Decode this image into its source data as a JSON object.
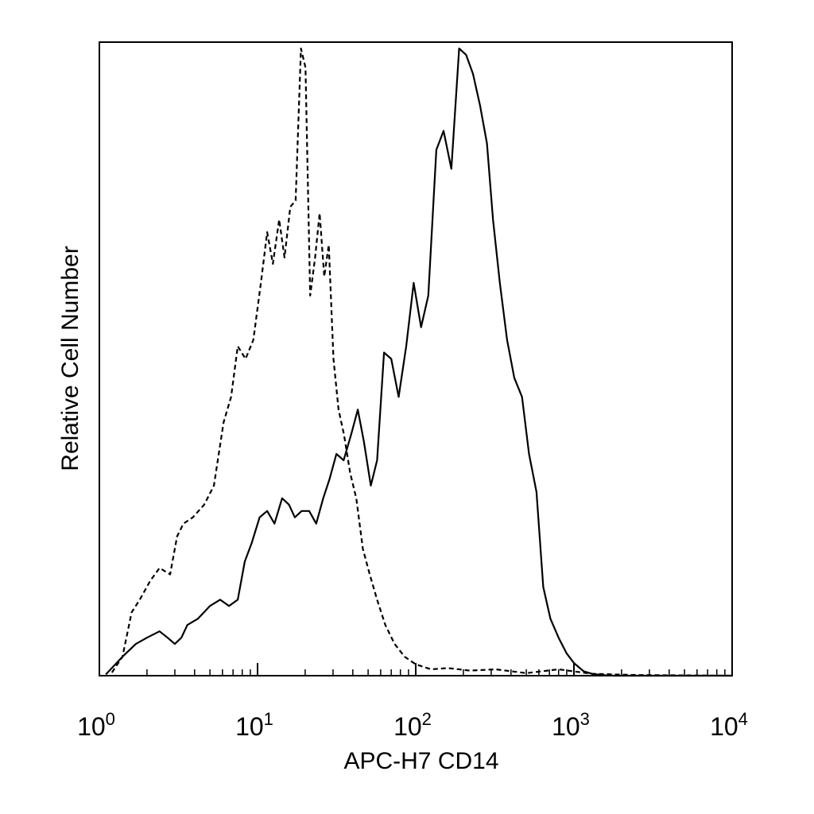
{
  "chart_data": {
    "type": "line",
    "title": "",
    "xlabel": "APC-H7  CD14",
    "ylabel": "Relative Cell Number",
    "x_scale": "log",
    "xlim": [
      1,
      10000
    ],
    "ylim": [
      0,
      100
    ],
    "grid": false,
    "legend": "none",
    "x_ticks": [
      {
        "value": 1,
        "base": "10",
        "exp": "0"
      },
      {
        "value": 10,
        "base": "10",
        "exp": "1"
      },
      {
        "value": 100,
        "base": "10",
        "exp": "2"
      },
      {
        "value": 1000,
        "base": "10",
        "exp": "3"
      },
      {
        "value": 10000,
        "base": "10",
        "exp": "4"
      }
    ],
    "series": [
      {
        "style": "dashed",
        "color": "#000000",
        "x": [
          1.2,
          1.4,
          1.6,
          1.8,
          2.1,
          2.4,
          2.8,
          3.1,
          3.4,
          3.9,
          4.6,
          5.3,
          6.1,
          6.8,
          7.5,
          8.4,
          9.4,
          10.5,
          11.5,
          12.5,
          13.7,
          14.8,
          16.1,
          17.4,
          18.8,
          20.1,
          21.5,
          23.1,
          24.7,
          26.4,
          28.2,
          30.2,
          32.5,
          35.2,
          38.5,
          42.1,
          46.3,
          51.2,
          57.0,
          64.2,
          73.5,
          85.0,
          100,
          125,
          160,
          220,
          320,
          500,
          800,
          1300,
          2500,
          10000
        ],
        "y": [
          0.5,
          3,
          10,
          12,
          15,
          17,
          16,
          22,
          24,
          25,
          27,
          30,
          40,
          44,
          52,
          50,
          53,
          62,
          70,
          65,
          72,
          66,
          74,
          75,
          99,
          96,
          60,
          66,
          73,
          63,
          68,
          50,
          42,
          38,
          32,
          28,
          20,
          16,
          12,
          8,
          5,
          3,
          1.8,
          1,
          1.2,
          0.8,
          1,
          0.4,
          1,
          0.3,
          0.1,
          0
        ]
      },
      {
        "style": "solid",
        "color": "#000000",
        "x": [
          1.1,
          1.4,
          1.7,
          2.0,
          2.4,
          2.7,
          3.0,
          3.3,
          3.6,
          4.2,
          5.0,
          5.8,
          6.6,
          7.5,
          8.3,
          9.2,
          10.3,
          11.5,
          12.8,
          14.3,
          15.8,
          17.2,
          19.0,
          21.2,
          23.5,
          26.0,
          28.5,
          31.5,
          35.0,
          39.0,
          43.0,
          47.0,
          52.0,
          57.0,
          63.0,
          70.0,
          78.0,
          87.0,
          97.0,
          108,
          120,
          135,
          150,
          168,
          188,
          208,
          230,
          255,
          282,
          308,
          340,
          378,
          420,
          470,
          520,
          580,
          640,
          710,
          800,
          900,
          1000,
          1150,
          1300,
          1500,
          1800,
          2200,
          3000,
          5000,
          10000
        ],
        "y": [
          0.2,
          3,
          5,
          6,
          7,
          6,
          5,
          6,
          8,
          9,
          11,
          12,
          11,
          12,
          18,
          21,
          25,
          26,
          24,
          28,
          27,
          25,
          26,
          26,
          24,
          28,
          31,
          35,
          34,
          38,
          42,
          37,
          30,
          34,
          51,
          50,
          44,
          52,
          62,
          55,
          60,
          83,
          86,
          80,
          99,
          98,
          95,
          90,
          84,
          72,
          62,
          53,
          47,
          44,
          35,
          29,
          14,
          9,
          6,
          3.5,
          2,
          0.7,
          0.3,
          0.1,
          0,
          0,
          0,
          0,
          0
        ]
      }
    ]
  }
}
